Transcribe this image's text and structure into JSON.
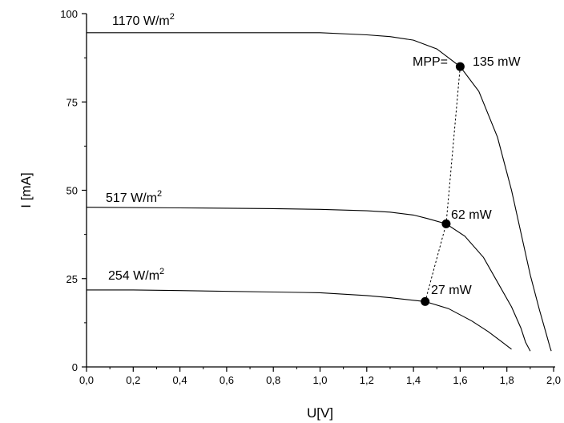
{
  "chart_data": {
    "type": "line",
    "xlabel": "U[V]",
    "ylabel": "I [mA]",
    "xlim": [
      0,
      2.0
    ],
    "ylim": [
      0,
      100
    ],
    "grid": false,
    "x_ticks": [
      0.0,
      0.2,
      0.4,
      0.6,
      0.8,
      1.0,
      1.2,
      1.4,
      1.6,
      1.8,
      2.0
    ],
    "x_tick_labels": [
      "0,0",
      "0,2",
      "0,4",
      "0,6",
      "0,8",
      "1,0",
      "1,2",
      "1,4",
      "1,6",
      "1,8",
      "2,0"
    ],
    "y_ticks": [
      0,
      25,
      50,
      75,
      100
    ],
    "y_tick_labels": [
      "0",
      "25",
      "50",
      "75",
      "100"
    ],
    "series": [
      {
        "label_main": "1170 W/m",
        "label_sup": "2",
        "points": [
          [
            0.0,
            94.6
          ],
          [
            0.4,
            94.6
          ],
          [
            0.8,
            94.6
          ],
          [
            1.0,
            94.6
          ],
          [
            1.2,
            94.0
          ],
          [
            1.3,
            93.5
          ],
          [
            1.4,
            92.5
          ],
          [
            1.5,
            90.0
          ],
          [
            1.6,
            85.0
          ],
          [
            1.68,
            78.0
          ],
          [
            1.76,
            65.0
          ],
          [
            1.82,
            50.0
          ],
          [
            1.86,
            38.0
          ],
          [
            1.9,
            26.0
          ],
          [
            1.94,
            16.0
          ],
          [
            1.97,
            9.0
          ],
          [
            1.985,
            5.5
          ],
          [
            1.99,
            4.5
          ]
        ]
      },
      {
        "label_main": "517 W/m",
        "label_sup": "2",
        "points": [
          [
            0.0,
            45.2
          ],
          [
            0.4,
            45.0
          ],
          [
            0.8,
            44.8
          ],
          [
            1.0,
            44.6
          ],
          [
            1.2,
            44.2
          ],
          [
            1.3,
            43.8
          ],
          [
            1.4,
            43.0
          ],
          [
            1.46,
            42.0
          ],
          [
            1.54,
            40.5
          ],
          [
            1.62,
            37.0
          ],
          [
            1.7,
            31.0
          ],
          [
            1.76,
            24.0
          ],
          [
            1.82,
            17.0
          ],
          [
            1.86,
            11.0
          ],
          [
            1.88,
            7.0
          ],
          [
            1.9,
            4.5
          ]
        ]
      },
      {
        "label_main": "254 W/m",
        "label_sup": "2",
        "points": [
          [
            0.0,
            21.8
          ],
          [
            0.2,
            21.8
          ],
          [
            0.4,
            21.6
          ],
          [
            0.8,
            21.2
          ],
          [
            1.0,
            21.0
          ],
          [
            1.2,
            20.2
          ],
          [
            1.3,
            19.6
          ],
          [
            1.45,
            18.5
          ],
          [
            1.55,
            16.5
          ],
          [
            1.65,
            13.0
          ],
          [
            1.72,
            10.0
          ],
          [
            1.78,
            7.0
          ],
          [
            1.82,
            5.0
          ]
        ]
      }
    ],
    "mpp_points": [
      [
        1.6,
        85.0
      ],
      [
        1.54,
        40.5
      ],
      [
        1.45,
        18.5
      ]
    ],
    "annotations": {
      "mpp_prefix": "MPP=",
      "mpp_values": [
        "135 mW",
        "62 mW",
        "27 mW"
      ]
    }
  }
}
